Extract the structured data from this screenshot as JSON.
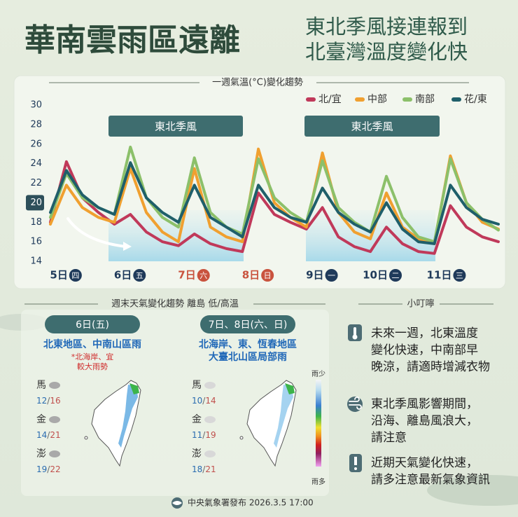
{
  "header": {
    "title": "華南雲雨區遠離",
    "subtitle_lines": [
      "東北季風接連報到",
      "北臺灣溫度變化快"
    ]
  },
  "chart_data": {
    "type": "line",
    "title": "一週氣溫(°C)變化趨勢",
    "categories": [
      null,
      "5日",
      null,
      null,
      null,
      "6日",
      null,
      null,
      null,
      "7日",
      null,
      null,
      null,
      "8日",
      null,
      null,
      null,
      "9日",
      null,
      null,
      null,
      "10日",
      null,
      null,
      null,
      "11日",
      null,
      null,
      null
    ],
    "weekdays": [
      null,
      "四",
      null,
      null,
      null,
      "五",
      null,
      null,
      null,
      "六",
      null,
      null,
      null,
      "日",
      null,
      null,
      null,
      "一",
      null,
      null,
      null,
      "二",
      null,
      null,
      null,
      "三",
      null,
      null,
      null
    ],
    "day_label_colors": [
      null,
      "#1f3a5a",
      null,
      null,
      null,
      "#1f3a5a",
      null,
      null,
      null,
      "#c9533e",
      null,
      null,
      null,
      "#c9533e",
      null,
      null,
      null,
      "#1f3a5a",
      null,
      null,
      null,
      "#1f3a5a",
      null,
      null,
      null,
      "#1f3a5a",
      null,
      null,
      null
    ],
    "annotations": [
      "東北季風",
      "東北季風"
    ],
    "ylim": [
      14,
      30
    ],
    "yticks": [
      14,
      16,
      18,
      20,
      22,
      24,
      26,
      28,
      30
    ],
    "highlight_ytick": 20,
    "grid": false,
    "series": [
      {
        "name": "北/宜",
        "color": "#c0395a",
        "values": [
          18.0,
          24.2,
          20.5,
          19.0,
          17.8,
          18.8,
          17.0,
          16.0,
          15.6,
          16.8,
          15.8,
          15.3,
          15.0,
          21.0,
          18.8,
          18.0,
          17.3,
          19.5,
          16.5,
          15.5,
          15.0,
          17.5,
          15.8,
          15.0,
          14.8,
          19.7,
          17.5,
          16.5,
          16.0
        ]
      },
      {
        "name": "中部",
        "color": "#f0a030",
        "values": [
          17.8,
          21.8,
          19.5,
          18.5,
          18.0,
          23.5,
          19.0,
          17.0,
          16.0,
          23.5,
          17.5,
          16.5,
          16.0,
          25.5,
          20.0,
          18.5,
          17.5,
          25.1,
          19.0,
          17.0,
          16.3,
          21.0,
          17.5,
          16.3,
          15.8,
          24.8,
          20.0,
          18.0,
          17.3
        ]
      },
      {
        "name": "南部",
        "color": "#8cc06a",
        "values": [
          18.5,
          23.0,
          20.5,
          19.5,
          18.8,
          25.7,
          20.5,
          18.5,
          17.5,
          24.6,
          19.0,
          17.5,
          16.8,
          24.5,
          20.5,
          19.0,
          18.0,
          24.3,
          19.5,
          18.0,
          17.0,
          22.7,
          18.5,
          16.5,
          16.0,
          24.5,
          20.0,
          18.3,
          17.2
        ]
      },
      {
        "name": "花/東",
        "color": "#1f5f6a",
        "values": [
          19.0,
          23.3,
          20.8,
          19.5,
          18.8,
          24.1,
          20.5,
          19.0,
          18.0,
          21.8,
          18.5,
          17.5,
          16.5,
          21.8,
          19.5,
          18.5,
          18.0,
          21.5,
          19.0,
          17.8,
          17.0,
          20.0,
          17.3,
          16.0,
          15.8,
          21.8,
          19.5,
          18.3,
          17.8
        ]
      }
    ]
  },
  "weekend": {
    "title": "週末天氣變化趨勢 離島 低/高溫",
    "separator": "/",
    "scale_labels": [
      "雨少",
      "雨多"
    ],
    "panels": [
      {
        "date": "6日(五)",
        "headline_lines": [
          "北東地區、中南山區雨"
        ],
        "note_lines": [
          "*北海岸、宜",
          "較大雨勢"
        ],
        "islands": [
          {
            "name": "馬",
            "low": 12,
            "high": 16
          },
          {
            "name": "金",
            "low": 14,
            "high": 21
          },
          {
            "name": "澎",
            "low": 19,
            "high": 22
          }
        ]
      },
      {
        "date": "7日、8日(六、日)",
        "headline_lines": [
          "北海岸、東、恆春地區",
          "大臺北山區局部雨"
        ],
        "islands": [
          {
            "name": "馬",
            "low": 10,
            "high": 14
          },
          {
            "name": "金",
            "low": 11,
            "high": 19
          },
          {
            "name": "澎",
            "low": 18,
            "high": 21
          }
        ]
      }
    ]
  },
  "tips": {
    "title": "小叮嚀",
    "items": [
      {
        "lines": [
          "未來一週，北東溫度",
          "變化快速，中南部早",
          "晚涼，請適時增減衣物"
        ]
      },
      {
        "lines": [
          "東北季風影響期間，",
          "沿海、離島風浪大，",
          "請注意"
        ]
      },
      {
        "lines": [
          "近期天氣變化快速，",
          "請多注意最新氣象資訊"
        ]
      }
    ]
  },
  "footer": {
    "text": "中央氣象署發布 2026.3.5 17:00"
  }
}
